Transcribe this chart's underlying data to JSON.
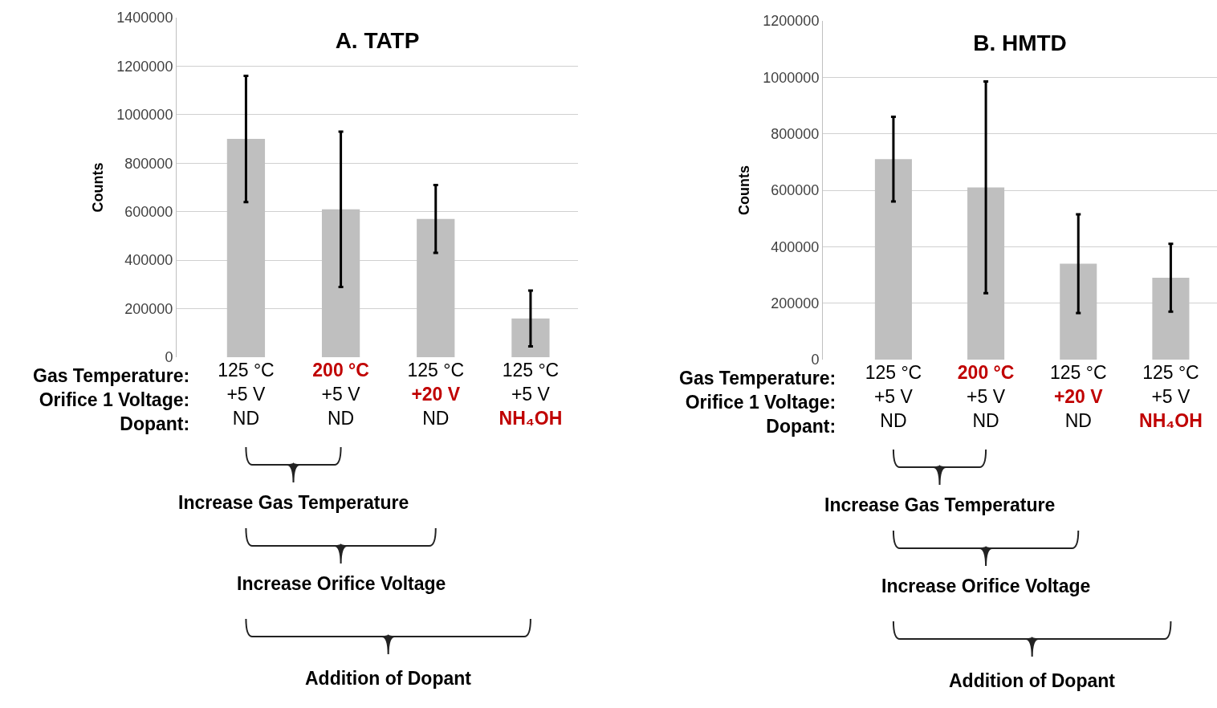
{
  "chart_data": [
    {
      "type": "bar",
      "title": "A. TATP",
      "ylabel": "Counts",
      "xlabel": "Gas Temperature:\nOrifice 1 Voltage:\nDopant:",
      "categories": [
        "125 °C\n+5 V\nND",
        "200 °C\n+5 V\nND",
        "125 °C\n+20 V\nND",
        "125 °C\n+5 V\nNH₄OH"
      ],
      "values": [
        900000,
        610000,
        570000,
        160000
      ],
      "errors": [
        260000,
        320000,
        140000,
        115000
      ],
      "color": "#bfbfbf",
      "ylim": [
        0,
        1400000
      ],
      "yticks": [
        0,
        200000,
        400000,
        600000,
        800000,
        1000000,
        1200000,
        1400000
      ],
      "grid": "y",
      "annotations": [
        "Increase Gas Temperature",
        "Increase Orifice Voltage",
        "Addition of Dopant"
      ]
    },
    {
      "type": "bar",
      "title": "B. HMTD",
      "ylabel": "Counts",
      "xlabel": "Gas Temperature:\nOrifice 1 Voltage:\nDopant:",
      "categories": [
        "125 °C\n+5 V\nND",
        "200 °C\n+5 V\nND",
        "125 °C\n+20 V\nND",
        "125 °C\n+5 V\nNH₄OH"
      ],
      "values": [
        710000,
        610000,
        340000,
        290000
      ],
      "errors": [
        150000,
        375000,
        175000,
        120000
      ],
      "color": "#bfbfbf",
      "ylim": [
        0,
        1200000
      ],
      "yticks": [
        0,
        200000,
        400000,
        600000,
        800000,
        1000000,
        1200000
      ],
      "grid": "y",
      "annotations": [
        "Increase Gas Temperature",
        "Increase Orifice Voltage",
        "Addition of Dopant"
      ]
    }
  ]
}
